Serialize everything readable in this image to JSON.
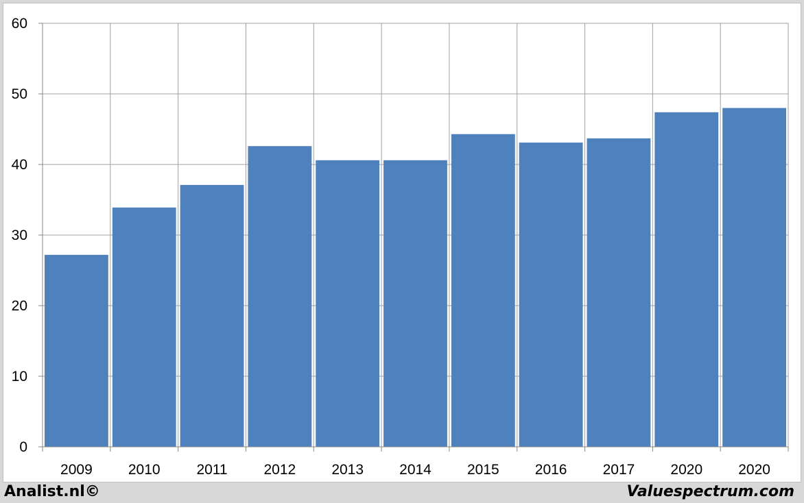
{
  "chart_data": {
    "type": "bar",
    "title": "",
    "xlabel": "",
    "ylabel": "",
    "categories": [
      "2009",
      "2010",
      "2011",
      "2012",
      "2013",
      "2014",
      "2015",
      "2016",
      "2017",
      "2020",
      "2020"
    ],
    "values": [
      27.2,
      33.9,
      37.1,
      42.6,
      40.6,
      40.6,
      44.3,
      43.1,
      43.7,
      47.4,
      48.0
    ],
    "ylim": [
      0,
      60
    ],
    "yticks": [
      0,
      10,
      20,
      30,
      40,
      50,
      60
    ],
    "grid": true,
    "legend": "none",
    "colors": {
      "bar": "#4f81bd",
      "grid": "#a0a0a0",
      "axis": "#868686"
    }
  },
  "footer": {
    "left": "Analist.nl©",
    "right": "Valuespectrum.com"
  }
}
